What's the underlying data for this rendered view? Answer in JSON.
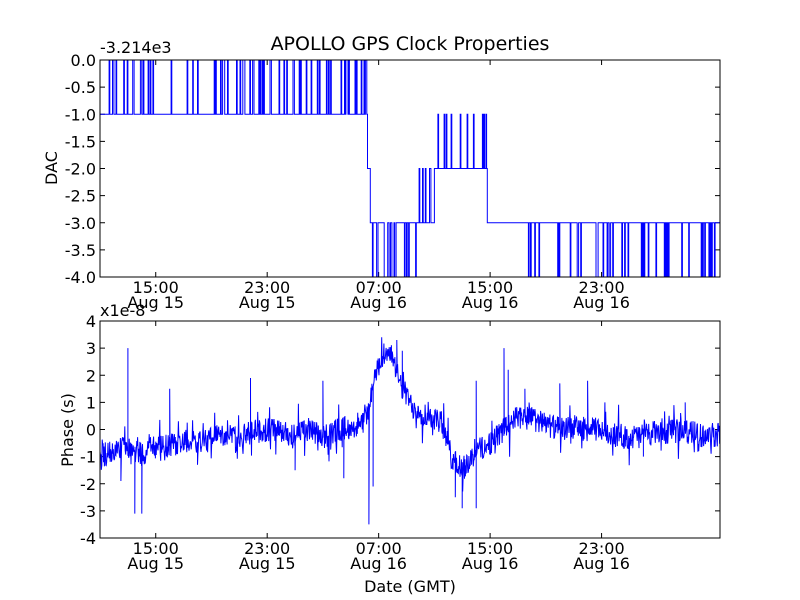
{
  "figure": {
    "title": "APOLLO GPS Clock Properties",
    "xlabel": "Date (GMT)"
  },
  "chart_data": [
    {
      "type": "line",
      "title": "APOLLO GPS Clock Properties",
      "xlabel": "",
      "ylabel": "DAC",
      "y_offset_label": "-3.214e3",
      "xlim_hours": [
        11.0,
        55.5
      ],
      "ylim": [
        -4.0,
        0.0
      ],
      "grid": false,
      "x_ticks": [
        {
          "hour": 15,
          "time": "15:00",
          "date": "Aug 15"
        },
        {
          "hour": 23,
          "time": "23:00",
          "date": "Aug 15"
        },
        {
          "hour": 31,
          "time": "07:00",
          "date": "Aug 16"
        },
        {
          "hour": 39,
          "time": "15:00",
          "date": "Aug 16"
        },
        {
          "hour": 47,
          "time": "23:00",
          "date": "Aug 16"
        }
      ],
      "y_ticks": [
        {
          "value": 0.0,
          "label": "0.0"
        },
        {
          "value": -0.5,
          "label": "-0.5"
        },
        {
          "value": -1.0,
          "label": "-1.0"
        },
        {
          "value": -1.5,
          "label": "-1.5"
        },
        {
          "value": -2.0,
          "label": "-2.0"
        },
        {
          "value": -2.5,
          "label": "-2.5"
        },
        {
          "value": -3.0,
          "label": "-3.0"
        },
        {
          "value": -3.5,
          "label": "-3.5"
        },
        {
          "value": -4.0,
          "label": "-4.0"
        }
      ],
      "series": [
        {
          "color": "#0000ff",
          "segments": [
            {
              "start": 11.0,
              "end": 30.2,
              "level": -1,
              "flicker_to": 0
            },
            {
              "start": 30.2,
              "end": 30.4,
              "level": -2
            },
            {
              "start": 30.4,
              "end": 33.9,
              "level": -3,
              "flicker_to": -4
            },
            {
              "start": 33.9,
              "end": 35.0,
              "level": -3,
              "flicker_to": -2
            },
            {
              "start": 35.0,
              "end": 37.0,
              "level": -2,
              "flicker_to": -1
            },
            {
              "start": 37.0,
              "end": 38.8,
              "level": -2,
              "flicker_to": -1
            },
            {
              "start": 38.8,
              "end": 40.6,
              "level": -3
            },
            {
              "start": 40.6,
              "end": 55.5,
              "level": -3,
              "flicker_to": -4
            }
          ]
        }
      ]
    },
    {
      "type": "line",
      "xlabel": "Date (GMT)",
      "ylabel": "Phase (s)",
      "y_offset_label": "x1e-8",
      "xlim_hours": [
        11.0,
        55.5
      ],
      "ylim": [
        -4,
        4
      ],
      "grid": false,
      "x_ticks": [
        {
          "hour": 15,
          "time": "15:00",
          "date": "Aug 15"
        },
        {
          "hour": 23,
          "time": "23:00",
          "date": "Aug 15"
        },
        {
          "hour": 31,
          "time": "07:00",
          "date": "Aug 16"
        },
        {
          "hour": 39,
          "time": "15:00",
          "date": "Aug 16"
        },
        {
          "hour": 47,
          "time": "23:00",
          "date": "Aug 16"
        }
      ],
      "y_ticks": [
        {
          "value": 4,
          "label": "4"
        },
        {
          "value": 3,
          "label": "3"
        },
        {
          "value": 2,
          "label": "2"
        },
        {
          "value": 1,
          "label": "1"
        },
        {
          "value": 0,
          "label": "0"
        },
        {
          "value": -1,
          "label": "-1"
        },
        {
          "value": -2,
          "label": "-2"
        },
        {
          "value": -3,
          "label": "-3"
        },
        {
          "value": -4,
          "label": "-4"
        }
      ],
      "series": [
        {
          "color": "#0000ff",
          "trend": [
            [
              11.0,
              -1.0
            ],
            [
              12.0,
              -0.8
            ],
            [
              13.0,
              -0.6
            ],
            [
              14.0,
              -0.9
            ],
            [
              15.0,
              -0.7
            ],
            [
              16.0,
              -0.6
            ],
            [
              17.0,
              -0.4
            ],
            [
              18.0,
              -0.5
            ],
            [
              19.0,
              -0.3
            ],
            [
              20.0,
              -0.2
            ],
            [
              21.0,
              -0.3
            ],
            [
              22.0,
              -0.1
            ],
            [
              23.0,
              0.0
            ],
            [
              24.0,
              -0.1
            ],
            [
              25.0,
              -0.2
            ],
            [
              26.0,
              0.0
            ],
            [
              27.0,
              -0.3
            ],
            [
              28.0,
              0.0
            ],
            [
              29.0,
              0.1
            ],
            [
              30.0,
              0.3
            ],
            [
              30.8,
              2.0
            ],
            [
              31.5,
              3.0
            ],
            [
              32.0,
              2.5
            ],
            [
              32.7,
              1.5
            ],
            [
              33.5,
              0.8
            ],
            [
              34.5,
              0.5
            ],
            [
              35.5,
              0.3
            ],
            [
              36.2,
              -1.0
            ],
            [
              37.0,
              -1.5
            ],
            [
              38.0,
              -0.8
            ],
            [
              39.0,
              -0.5
            ],
            [
              40.0,
              0.0
            ],
            [
              41.0,
              0.5
            ],
            [
              42.0,
              0.4
            ],
            [
              43.0,
              0.2
            ],
            [
              44.0,
              0.0
            ],
            [
              45.0,
              0.1
            ],
            [
              46.0,
              0.0
            ],
            [
              47.0,
              0.0
            ],
            [
              48.0,
              -0.2
            ],
            [
              49.0,
              -0.3
            ],
            [
              50.0,
              -0.2
            ],
            [
              51.0,
              -0.1
            ],
            [
              52.0,
              -0.1
            ],
            [
              53.0,
              0.0
            ],
            [
              54.0,
              -0.2
            ],
            [
              55.5,
              -0.2
            ]
          ],
          "spikes": [
            [
              13.0,
              3.0
            ],
            [
              13.5,
              -3.1
            ],
            [
              14.0,
              -3.1
            ],
            [
              12.5,
              -1.9
            ],
            [
              16.0,
              1.5
            ],
            [
              18.0,
              -1.3
            ],
            [
              21.8,
              1.9
            ],
            [
              25.0,
              -1.5
            ],
            [
              27.0,
              1.8
            ],
            [
              28.5,
              -1.8
            ],
            [
              30.3,
              -3.5
            ],
            [
              30.6,
              -2.1
            ],
            [
              32.3,
              3.3
            ],
            [
              32.7,
              2.9
            ],
            [
              36.5,
              -2.5
            ],
            [
              37.0,
              -2.9
            ],
            [
              38.0,
              -2.9
            ],
            [
              38.0,
              1.8
            ],
            [
              40.0,
              3.0
            ],
            [
              40.3,
              2.2
            ],
            [
              41.5,
              1.5
            ],
            [
              44.0,
              1.7
            ],
            [
              46.0,
              1.8
            ],
            [
              50.0,
              -1.0
            ],
            [
              53.0,
              1.0
            ]
          ]
        }
      ]
    }
  ]
}
